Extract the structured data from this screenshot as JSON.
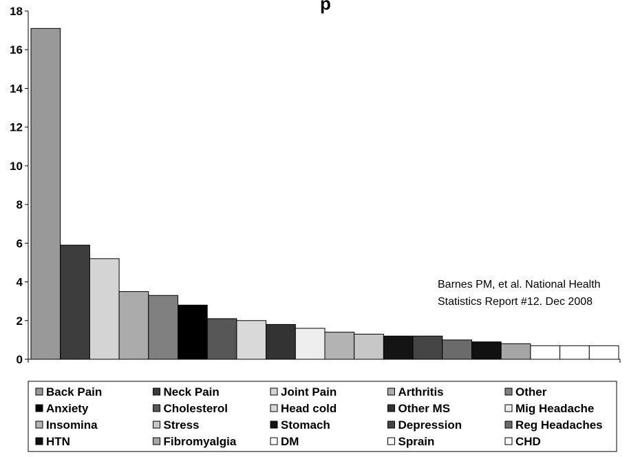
{
  "chart_data": {
    "type": "bar",
    "title": "p",
    "annotation": [
      "Barnes PM, et al. National Health",
      "Statistics Report #12. Dec 2008"
    ],
    "ylim": [
      0,
      18
    ],
    "yticks": [
      0,
      2,
      4,
      6,
      8,
      10,
      12,
      14,
      16,
      18
    ],
    "grid": false,
    "legend_position": "bottom",
    "series": [
      {
        "name": "Back Pain",
        "value": 17.1,
        "color": "#999999"
      },
      {
        "name": "Neck Pain",
        "value": 5.9,
        "color": "#3d3d3d"
      },
      {
        "name": "Joint Pain",
        "value": 5.2,
        "color": "#d4d4d4"
      },
      {
        "name": "Arthritis",
        "value": 3.5,
        "color": "#ababab"
      },
      {
        "name": "Other",
        "value": 3.3,
        "color": "#808080"
      },
      {
        "name": "Anxiety",
        "value": 2.8,
        "color": "#000000"
      },
      {
        "name": "Cholesterol",
        "value": 2.1,
        "color": "#575757"
      },
      {
        "name": "Head cold",
        "value": 2.0,
        "color": "#d9d9d9"
      },
      {
        "name": "Other MS",
        "value": 1.8,
        "color": "#333333"
      },
      {
        "name": "Mig Headache",
        "value": 1.6,
        "color": "#eeeeee"
      },
      {
        "name": "Insomina",
        "value": 1.4,
        "color": "#b3b3b3"
      },
      {
        "name": "Stress",
        "value": 1.3,
        "color": "#c7c7c7"
      },
      {
        "name": "Stomach",
        "value": 1.2,
        "color": "#141414"
      },
      {
        "name": "Depression",
        "value": 1.2,
        "color": "#454545"
      },
      {
        "name": "Reg Headaches",
        "value": 1.0,
        "color": "#6b6b6b"
      },
      {
        "name": "HTN",
        "value": 0.9,
        "color": "#111111"
      },
      {
        "name": "Fibromyalgia",
        "value": 0.8,
        "color": "#a6a6a6"
      },
      {
        "name": "DM",
        "value": 0.7,
        "color": "#ffffff"
      },
      {
        "name": "Sprain",
        "value": 0.7,
        "color": "#ffffff"
      },
      {
        "name": "CHD",
        "value": 0.7,
        "color": "#ffffff"
      }
    ]
  }
}
